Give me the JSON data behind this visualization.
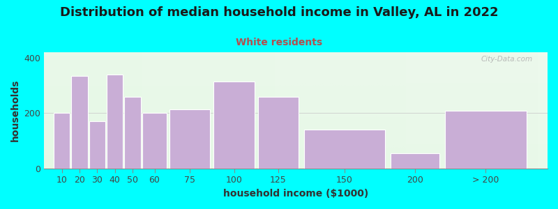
{
  "title": "Distribution of median household income in Valley, AL in 2022",
  "subtitle": "White residents",
  "xlabel": "household income ($1000)",
  "ylabel": "households",
  "background_outer": "#00FFFF",
  "bar_color": "#c9aed6",
  "categories": [
    "10",
    "20",
    "30",
    "40",
    "50",
    "60",
    "75",
    "100",
    "125",
    "150",
    "200",
    "> 200"
  ],
  "left_edges": [
    10,
    20,
    30,
    40,
    50,
    60,
    75,
    100,
    125,
    150,
    200,
    230
  ],
  "widths": [
    10,
    10,
    10,
    10,
    10,
    15,
    25,
    25,
    25,
    50,
    30,
    50
  ],
  "values": [
    200,
    335,
    170,
    340,
    260,
    200,
    215,
    315,
    260,
    140,
    55,
    210
  ],
  "ylim": [
    0,
    420
  ],
  "yticks": [
    0,
    200,
    400
  ],
  "xlim_left": 5,
  "xlim_right": 290,
  "title_fontsize": 13,
  "subtitle_fontsize": 10,
  "subtitle_color": "#b05050",
  "axis_label_fontsize": 10,
  "tick_fontsize": 9,
  "watermark": "City-Data.com"
}
